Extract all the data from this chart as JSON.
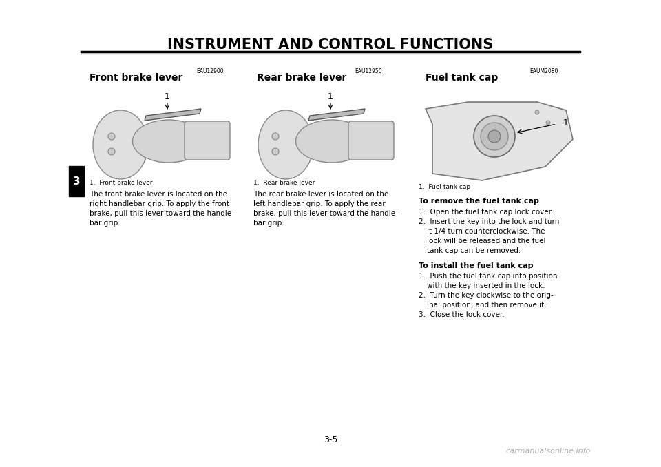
{
  "page_title": "INSTRUMENT AND CONTROL FUNCTIONS",
  "page_number": "3-5",
  "chapter_number": "3",
  "background_color": "#ffffff",
  "text_color": "#000000",
  "watermark": "carmanualsonline.info",
  "section1_code": "EAU12900",
  "section1_title": "Front brake lever",
  "section1_fig_label": "1.  Front brake lever",
  "section1_body": "The front brake lever is located on the\nright handlebar grip. To apply the front\nbrake, pull this lever toward the handle-\nbar grip.",
  "section2_code": "EAU12950",
  "section2_title": "Rear brake lever",
  "section2_fig_label": "1.  Rear brake lever",
  "section2_body": "The rear brake lever is located on the\nleft handlebar grip. To apply the rear\nbrake, pull this lever toward the handle-\nbar grip.",
  "section3_code": "EAUM2080",
  "section3_title": "Fuel tank cap",
  "section3_fig_label": "1.  Fuel tank cap",
  "section3_remove_title": "To remove the fuel tank cap",
  "section3_remove_steps": [
    "Open the fuel tank cap lock cover.",
    "Insert the key into the lock and turn\nit 1/4 turn counterclockwise. The\nlock will be released and the fuel\ntank cap can be removed."
  ],
  "section3_install_title": "To install the fuel tank cap",
  "section3_install_steps": [
    "Push the fuel tank cap into position\nwith the key inserted in the lock.",
    "Turn the key clockwise to the orig-\ninal position, and then remove it.",
    "Close the lock cover."
  ]
}
